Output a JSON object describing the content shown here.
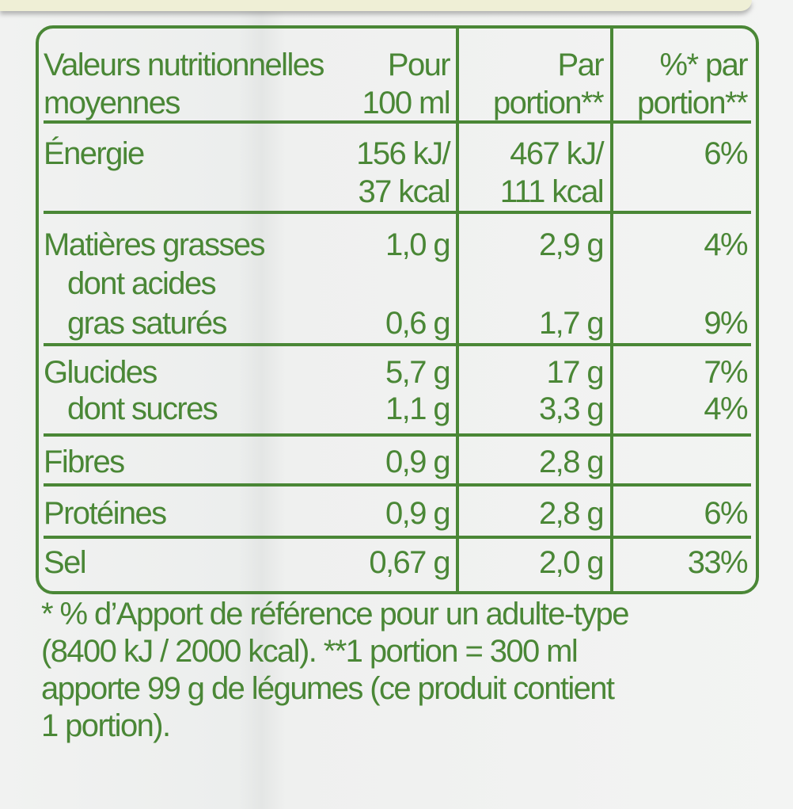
{
  "table": {
    "header": {
      "col1": [
        "Valeurs nutritionnelles",
        "moyennes"
      ],
      "col2": [
        "Pour",
        "100 ml"
      ],
      "col3": [
        "Par",
        "portion**"
      ],
      "col4": [
        "%* par",
        "portion**"
      ]
    },
    "rows": [
      {
        "label": "Énergie",
        "per100": [
          "156 kJ/",
          "37 kcal"
        ],
        "perPortion": [
          "467 kJ/",
          "111 kcal"
        ],
        "pct": "6%"
      },
      {
        "label": "Matières grasses",
        "per100": "1,0 g",
        "perPortion": "2,9 g",
        "pct": "4%"
      },
      {
        "label": [
          "dont acides",
          "gras saturés"
        ],
        "per100": "0,6 g",
        "perPortion": "1,7 g",
        "pct": "9%"
      },
      {
        "label": "Glucides",
        "per100": "5,7 g",
        "perPortion": "17 g",
        "pct": "7%"
      },
      {
        "label": "dont sucres",
        "per100": "1,1 g",
        "perPortion": "3,3 g",
        "pct": "4%"
      },
      {
        "label": "Fibres",
        "per100": "0,9 g",
        "perPortion": "2,8 g",
        "pct": ""
      },
      {
        "label": "Protéines",
        "per100": "0,9 g",
        "perPortion": "2,8 g",
        "pct": "6%"
      },
      {
        "label": "Sel",
        "per100": "0,67 g",
        "perPortion": "2,0 g",
        "pct": "33%"
      }
    ]
  },
  "footnote": [
    "* % d’Apport de référence pour un adulte-type",
    "(8400 kJ / 2000 kcal). **1 portion = 300 ml",
    "apporte 99 g de légumes (ce produit contient",
    "1 portion)."
  ],
  "colors": {
    "text": "#4a8736",
    "background": "#eff0ef"
  }
}
